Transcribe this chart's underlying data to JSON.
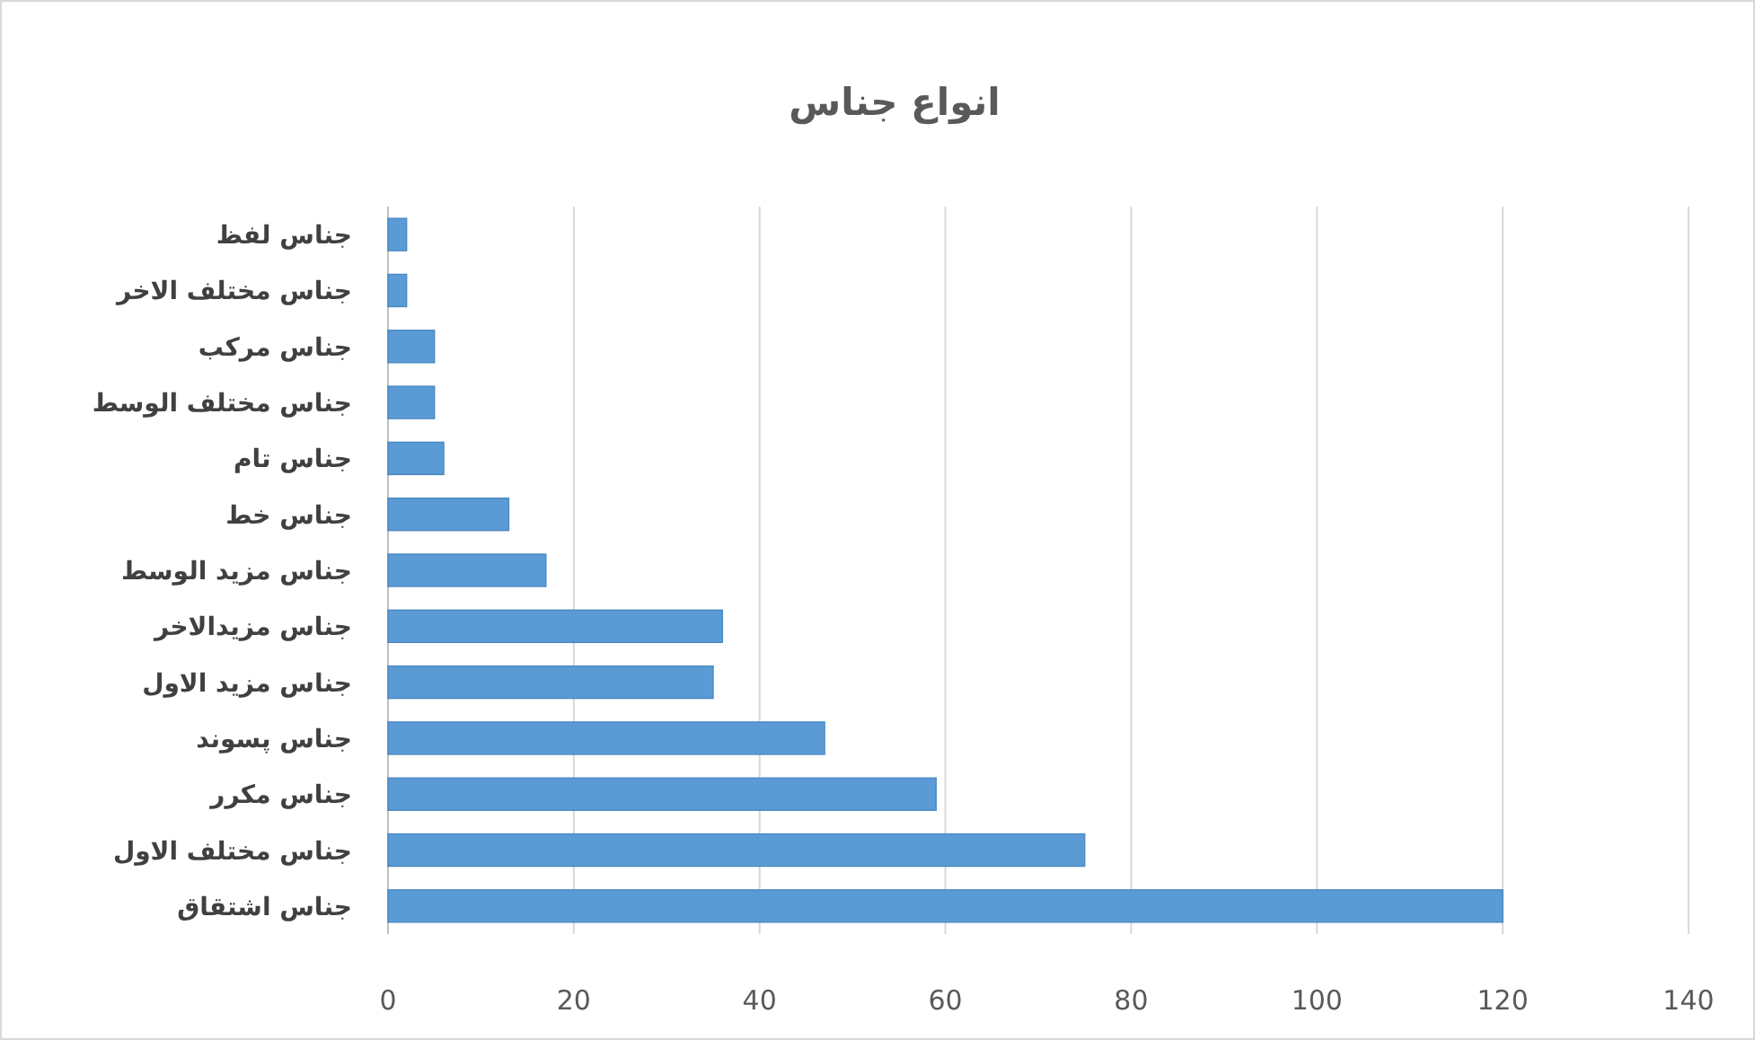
{
  "chart_data": {
    "type": "bar",
    "orientation": "horizontal",
    "title": "انواع جناس",
    "categories": [
      "جناس لفظ",
      "جناس مختلف الاخر",
      "جناس مركب",
      "جناس مختلف الوسط",
      "جناس تام",
      "جناس خط",
      "جناس مزید الوسط",
      "جناس مزیدالاخر",
      "جناس مزید الاول",
      "جناس پسوند",
      "جناس مكرر",
      "جناس مختلف الاول",
      "جناس اشتقاق"
    ],
    "values": [
      2,
      2,
      5,
      5,
      6,
      13,
      17,
      36,
      35,
      47,
      59,
      75,
      120
    ],
    "color": "#5b9bd5",
    "xlim": [
      0,
      140
    ],
    "xticks": [
      0,
      20,
      40,
      60,
      80,
      100,
      120,
      140
    ],
    "grid": "x"
  }
}
